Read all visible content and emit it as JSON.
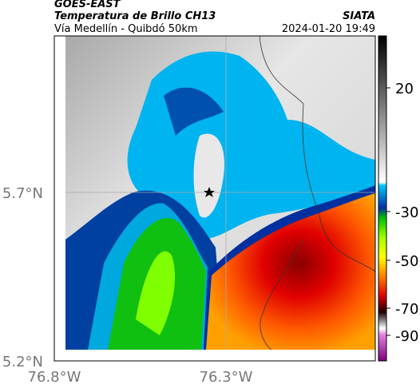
{
  "header": {
    "source": "GOES-EAST",
    "title": "Temperatura de Brillo CH13",
    "agency": "SIATA",
    "route": "Vía Medellín - Quibdó 50km",
    "datetime": "2024-01-20 19:49"
  },
  "axes": {
    "y_labels": [
      "5.7°N",
      "5.2°N"
    ],
    "x_labels": [
      "76.8°W",
      "76.3°W"
    ]
  },
  "colorbar": {
    "ticks": [
      20,
      -30,
      -50,
      -70,
      -90
    ]
  }
}
